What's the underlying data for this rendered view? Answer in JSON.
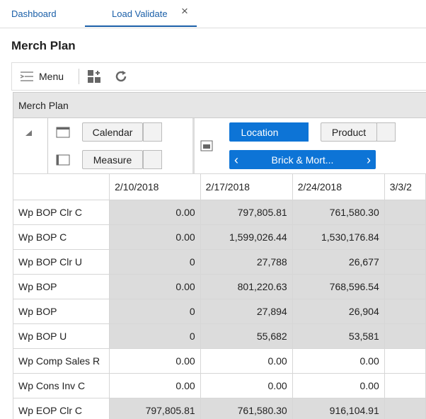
{
  "tabs": [
    {
      "label": "Dashboard",
      "active": false
    },
    {
      "label": "Load Validate",
      "active": true
    }
  ],
  "page_title": "Merch Plan",
  "toolbar": {
    "menu": "Menu"
  },
  "panel": {
    "title": "Merch Plan",
    "pivot": {
      "calendar": "Calendar",
      "measure": "Measure",
      "location": "Location",
      "product": "Product",
      "location_filter": "Brick & Mort..."
    }
  },
  "table": {
    "columns": [
      "2/10/2018",
      "2/17/2018",
      "2/24/2018",
      "3/3/2"
    ],
    "rows": [
      {
        "label": "Wp BOP Clr C",
        "shaded": true,
        "cells": [
          "0.00",
          "797,805.81",
          "761,580.30"
        ]
      },
      {
        "label": "Wp BOP C",
        "shaded": true,
        "cells": [
          "0.00",
          "1,599,026.44",
          "1,530,176.84"
        ]
      },
      {
        "label": "Wp BOP Clr U",
        "shaded": true,
        "cells": [
          "0",
          "27,788",
          "26,677"
        ]
      },
      {
        "label": "Wp BOP",
        "shaded": true,
        "cells": [
          "0.00",
          "801,220.63",
          "768,596.54"
        ]
      },
      {
        "label": "Wp BOP",
        "shaded": true,
        "cells": [
          "0",
          "27,894",
          "26,904"
        ]
      },
      {
        "label": "Wp BOP U",
        "shaded": true,
        "cells": [
          "0",
          "55,682",
          "53,581"
        ]
      },
      {
        "label": "Wp Comp Sales R",
        "shaded": false,
        "cells": [
          "0.00",
          "0.00",
          "0.00"
        ]
      },
      {
        "label": "Wp Cons Inv C",
        "shaded": false,
        "cells": [
          "0.00",
          "0.00",
          "0.00"
        ]
      },
      {
        "label": "Wp EOP Clr C",
        "shaded": true,
        "cells": [
          "797,805.81",
          "761,580.30",
          "916,104.91"
        ]
      }
    ]
  }
}
